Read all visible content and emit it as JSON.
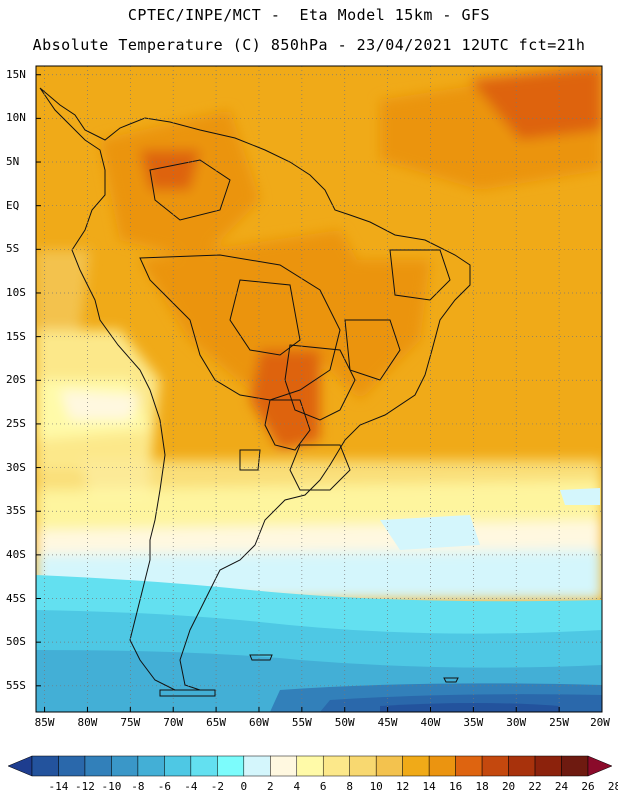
{
  "header": {
    "line1": "CPTEC/INPE/MCT -  Eta Model 15km - GFS",
    "line2": "Absolute Temperature (C) 850hPa - 23/04/2021 12UTC fct=21h"
  },
  "map": {
    "lat_labels": [
      "15N",
      "10N",
      "5N",
      "EQ",
      "5S",
      "10S",
      "15S",
      "20S",
      "25S",
      "30S",
      "35S",
      "40S",
      "45S",
      "50S",
      "55S"
    ],
    "lon_labels": [
      "85W",
      "80W",
      "75W",
      "70W",
      "65W",
      "60W",
      "55W",
      "50W",
      "45W",
      "40W",
      "35W",
      "30W",
      "25W",
      "20W"
    ],
    "lat_range": [
      16,
      -58
    ],
    "lon_range": [
      -86,
      -20
    ],
    "gridlines": "dotted"
  },
  "colorbar": {
    "labels": [
      "-14",
      "-12",
      "-10",
      "-8",
      "-6",
      "-4",
      "-2",
      "0",
      "2",
      "4",
      "6",
      "8",
      "10",
      "12",
      "14",
      "16",
      "18",
      "20",
      "22",
      "24",
      "26",
      "28"
    ],
    "colors": [
      "#1e3d8f",
      "#23539d",
      "#2a68ab",
      "#3280ba",
      "#3a97c8",
      "#43afd6",
      "#4ec8e4",
      "#63e0f0",
      "#7cfcfc",
      "#d4f6fc",
      "#fff8e0",
      "#fffaa8",
      "#fce88a",
      "#f8d870",
      "#f3c24e",
      "#f0aa18",
      "#eb9410",
      "#de6410",
      "#c4480e",
      "#a8320c",
      "#8c220c",
      "#6e1a10",
      "#8a0a2a"
    ]
  }
}
